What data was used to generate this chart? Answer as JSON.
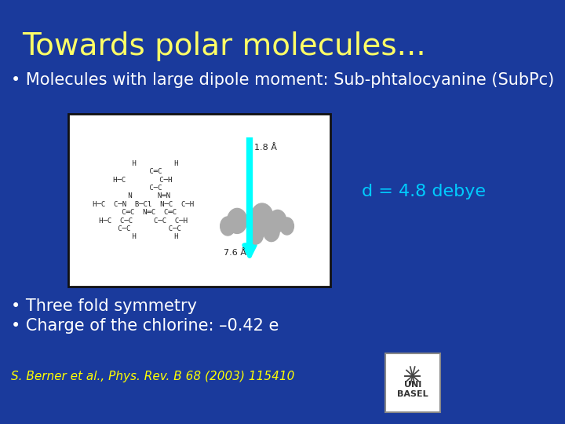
{
  "title": "Towards polar molecules...",
  "title_color": "#FFFF66",
  "title_fontsize": 28,
  "background_color": "#1a3a9c",
  "bullet1": "• Molecules with large dipole moment: Sub-phtalocyanine (SubPc)",
  "bullet2": "• Three fold symmetry",
  "bullet3": "• Charge of the chlorine: –0.42 e",
  "bullet_color": "#ffffff",
  "bullet_fontsize": 15,
  "dipole_text": "d = 4.8 debye",
  "dipole_color": "#00ccff",
  "dipole_fontsize": 16,
  "reference": "S. Berner et al., Phys. Rev. B 68 (2003) 115410",
  "reference_color": "#ffff00",
  "reference_fontsize": 11,
  "image_box_color": "#ffffff",
  "image_box_edge": "#111111"
}
